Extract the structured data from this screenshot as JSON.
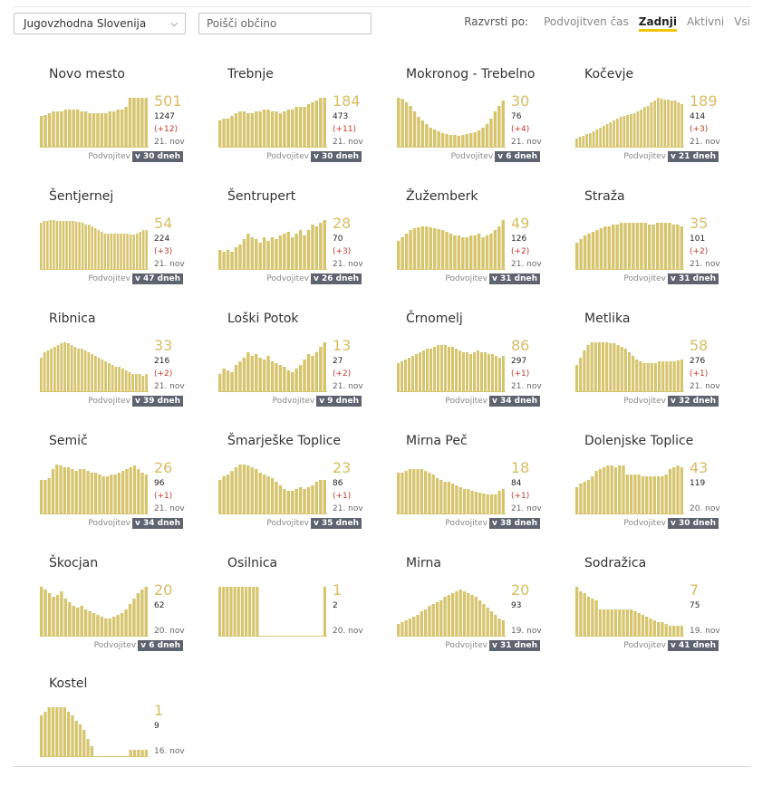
{
  "controls": {
    "region": "Jugovzhodna Slovenija",
    "search_placeholder": "Poišči občino",
    "sort_label": "Razvrsti po:",
    "sort_options": [
      "Podvojitven čas",
      "Zadnji",
      "Aktivni",
      "Vsi"
    ],
    "sort_active": "Zadnji"
  },
  "chart_colors": {
    "bars": "#d6c56e",
    "big_number": "#d8bd63",
    "delta": "#c0392b",
    "tag_bg": "#5e6370",
    "sort_underline": "#f4c400"
  },
  "cards": [
    {
      "name": "Novo mesto",
      "active": "501",
      "total": "1247",
      "delta": "(+12)",
      "date": "21. nov",
      "doubling_label": "Podvojitev",
      "doubling": "v 30 dneh",
      "chart_data": {
        "type": "bar",
        "values": [
          35,
          36,
          38,
          40,
          40,
          40,
          42,
          42,
          42,
          42,
          40,
          40,
          38,
          38,
          38,
          38,
          38,
          40,
          40,
          42,
          42,
          45,
          55,
          55,
          55,
          55,
          55
        ]
      }
    },
    {
      "name": "Trebnje",
      "active": "184",
      "total": "473",
      "delta": "(+11)",
      "date": "21. nov",
      "doubling_label": "Podvojitev",
      "doubling": "v 30 dneh",
      "chart_data": {
        "type": "bar",
        "values": [
          30,
          32,
          32,
          35,
          38,
          40,
          40,
          38,
          38,
          40,
          40,
          42,
          42,
          40,
          40,
          38,
          40,
          42,
          42,
          45,
          45,
          45,
          48,
          50,
          52,
          55,
          55
        ]
      }
    },
    {
      "name": "Mokronog - Trebelno",
      "active": "30",
      "total": "76",
      "delta": "(+4)",
      "date": "21. nov",
      "doubling_label": "Podvojitev",
      "doubling": "v 6 dneh",
      "chart_data": {
        "type": "bar",
        "values": [
          55,
          54,
          50,
          46,
          40,
          34,
          30,
          26,
          22,
          20,
          18,
          16,
          15,
          14,
          14,
          13,
          14,
          15,
          16,
          17,
          19,
          22,
          26,
          32,
          40,
          46,
          52
        ]
      }
    },
    {
      "name": "Kočevje",
      "active": "189",
      "total": "414",
      "delta": "(+3)",
      "date": "21. nov",
      "doubling_label": "Podvojitev",
      "doubling": "v 21 dneh",
      "chart_data": {
        "type": "bar",
        "values": [
          10,
          12,
          13,
          15,
          16,
          18,
          20,
          22,
          24,
          26,
          28,
          30,
          32,
          34,
          35,
          36,
          37,
          38,
          40,
          42,
          45,
          46,
          50,
          52,
          55,
          54,
          53,
          53,
          52,
          52,
          50,
          48
        ]
      }
    },
    {
      "name": "Šentjernej",
      "active": "54",
      "total": "224",
      "delta": "(+3)",
      "date": "21. nov",
      "doubling_label": "Podvojitev",
      "doubling": "v 47 dneh",
      "chart_data": {
        "type": "bar",
        "values": [
          52,
          54,
          54,
          55,
          55,
          54,
          54,
          54,
          54,
          54,
          54,
          53,
          53,
          52,
          50,
          50,
          48,
          46,
          44,
          42,
          40,
          40,
          40,
          40,
          40,
          40,
          40,
          40,
          39,
          39,
          40,
          42,
          44,
          44
        ]
      }
    },
    {
      "name": "Šentrupert",
      "active": "28",
      "total": "70",
      "delta": "(+3)",
      "date": "21. nov",
      "doubling_label": "Podvojitev",
      "doubling": "v 26 dneh",
      "chart_data": {
        "type": "bar",
        "values": [
          22,
          20,
          22,
          20,
          25,
          28,
          34,
          40,
          36,
          34,
          30,
          36,
          32,
          36,
          34,
          38,
          40,
          42,
          36,
          40,
          44,
          38,
          44,
          50,
          48,
          52,
          55
        ]
      }
    },
    {
      "name": "Žužemberk",
      "active": "49",
      "total": "126",
      "delta": "(+2)",
      "date": "21. nov",
      "doubling_label": "Podvojitev",
      "doubling": "v 31 dneh",
      "chart_data": {
        "type": "bar",
        "values": [
          32,
          36,
          40,
          44,
          46,
          47,
          48,
          48,
          47,
          46,
          45,
          44,
          42,
          40,
          38,
          38,
          36,
          36,
          38,
          38,
          40,
          36,
          38,
          40,
          44,
          48,
          55
        ]
      }
    },
    {
      "name": "Straža",
      "active": "35",
      "total": "101",
      "delta": "(+2)",
      "date": "21. nov",
      "doubling_label": "Podvojitev",
      "doubling": "v 31 dneh",
      "chart_data": {
        "type": "bar",
        "values": [
          30,
          34,
          38,
          40,
          42,
          44,
          46,
          48,
          48,
          50,
          50,
          52,
          52,
          52,
          52,
          52,
          52,
          52,
          50,
          50,
          52,
          52,
          52,
          52,
          50,
          50,
          48
        ]
      }
    },
    {
      "name": "Ribnica",
      "active": "33",
      "total": "216",
      "delta": "(+2)",
      "date": "21. nov",
      "doubling_label": "Podvojitev",
      "doubling": "v 39 dneh",
      "chart_data": {
        "type": "bar",
        "values": [
          38,
          44,
          46,
          48,
          50,
          52,
          54,
          56,
          54,
          52,
          50,
          48,
          48,
          46,
          44,
          42,
          40,
          38,
          36,
          34,
          32,
          30,
          28,
          28,
          26,
          24,
          22,
          20,
          20,
          20,
          18,
          20
        ]
      }
    },
    {
      "name": "Loški Potok",
      "active": "13",
      "total": "27",
      "delta": "(+2)",
      "date": "21. nov",
      "doubling_label": "Podvojitev",
      "doubling": "v 9 dneh",
      "chart_data": {
        "type": "bar",
        "values": [
          20,
          26,
          24,
          22,
          30,
          34,
          38,
          44,
          40,
          42,
          38,
          36,
          40,
          34,
          32,
          30,
          28,
          24,
          22,
          26,
          30,
          36,
          42,
          40,
          44,
          50,
          55
        ]
      }
    },
    {
      "name": "Črnomelj",
      "active": "86",
      "total": "297",
      "delta": "(+1)",
      "date": "21. nov",
      "doubling_label": "Podvojitev",
      "doubling": "v 34 dneh",
      "chart_data": {
        "type": "bar",
        "values": [
          32,
          34,
          36,
          38,
          40,
          42,
          44,
          46,
          48,
          48,
          50,
          52,
          52,
          52,
          50,
          50,
          48,
          46,
          44,
          44,
          42,
          44,
          46,
          44,
          44,
          42,
          42,
          40,
          38,
          40
        ]
      }
    },
    {
      "name": "Metlika",
      "active": "58",
      "total": "276",
      "delta": "(+1)",
      "date": "21. nov",
      "doubling_label": "Podvojitev",
      "doubling": "v 32 dneh",
      "chart_data": {
        "type": "bar",
        "values": [
          30,
          38,
          46,
          52,
          55,
          55,
          55,
          55,
          55,
          54,
          54,
          52,
          50,
          48,
          44,
          40,
          36,
          34,
          32,
          32,
          32,
          32,
          34,
          34,
          34,
          34,
          34,
          35,
          36
        ]
      }
    },
    {
      "name": "Semič",
      "active": "26",
      "total": "96",
      "delta": "(+1)",
      "date": "21. nov",
      "doubling_label": "Podvojitev",
      "doubling": "v 34 dneh",
      "chart_data": {
        "type": "bar",
        "values": [
          38,
          38,
          40,
          50,
          55,
          54,
          52,
          52,
          50,
          48,
          50,
          50,
          48,
          46,
          46,
          44,
          42,
          42,
          44,
          44,
          46,
          48,
          50,
          52,
          54,
          50,
          46,
          44
        ]
      }
    },
    {
      "name": "Šmarješke Toplice",
      "active": "23",
      "total": "86",
      "delta": "(+1)",
      "date": "21. nov",
      "doubling_label": "Podvojitev",
      "doubling": "v 35 dneh",
      "chart_data": {
        "type": "bar",
        "values": [
          38,
          42,
          44,
          48,
          52,
          55,
          56,
          54,
          52,
          50,
          46,
          44,
          42,
          40,
          36,
          32,
          28,
          26,
          26,
          28,
          30,
          28,
          30,
          32,
          36,
          38,
          38
        ]
      }
    },
    {
      "name": "Mirna Peč",
      "active": "18",
      "total": "84",
      "delta": "(+1)",
      "date": "21. nov",
      "doubling_label": "Podvojitev",
      "doubling": "v 38 dneh",
      "chart_data": {
        "type": "bar",
        "values": [
          46,
          46,
          48,
          50,
          50,
          50,
          50,
          48,
          46,
          44,
          40,
          38,
          36,
          36,
          34,
          32,
          30,
          28,
          28,
          26,
          25,
          24,
          23,
          22,
          22,
          22,
          26,
          28
        ]
      }
    },
    {
      "name": "Dolenjske Toplice",
      "active": "43",
      "total": "119",
      "delta": "",
      "date": "20. nov",
      "doubling_label": "Podvojitev",
      "doubling": "v 30 dneh",
      "chart_data": {
        "type": "bar",
        "values": [
          30,
          34,
          36,
          38,
          42,
          48,
          50,
          52,
          54,
          54,
          52,
          54,
          54,
          44,
          44,
          44,
          44,
          42,
          42,
          42,
          42,
          42,
          42,
          44,
          50,
          52,
          54,
          52
        ]
      }
    },
    {
      "name": "Škocjan",
      "active": "20",
      "total": "62",
      "delta": "",
      "date": "20. nov",
      "doubling_label": "Podvojitev",
      "doubling": "v 6 dneh",
      "chart_data": {
        "type": "bar",
        "values": [
          55,
          52,
          48,
          44,
          46,
          50,
          42,
          38,
          34,
          32,
          34,
          30,
          28,
          26,
          24,
          22,
          20,
          20,
          22,
          24,
          26,
          30,
          36,
          42,
          48,
          52,
          55
        ]
      }
    },
    {
      "name": "Osilnica",
      "active": "1",
      "total": "2",
      "delta": "",
      "date": "20. nov",
      "doubling_label": "",
      "doubling": "",
      "chart_data": {
        "type": "bar",
        "values": [
          55,
          55,
          55,
          55,
          55,
          55,
          55,
          55,
          55,
          55,
          55,
          0,
          0,
          0,
          0,
          0,
          0,
          0,
          0,
          0,
          0,
          0,
          0,
          0,
          0,
          0,
          0,
          0,
          55
        ]
      }
    },
    {
      "name": "Mirna",
      "active": "20",
      "total": "93",
      "delta": "",
      "date": "19. nov",
      "doubling_label": "Podvojitev",
      "doubling": "v 31 dneh",
      "chart_data": {
        "type": "bar",
        "values": [
          14,
          16,
          18,
          20,
          22,
          24,
          28,
          30,
          34,
          36,
          38,
          40,
          44,
          46,
          48,
          50,
          52,
          50,
          48,
          46,
          44,
          40,
          36,
          32,
          28,
          24,
          20,
          18
        ]
      }
    },
    {
      "name": "Sodražica",
      "active": "7",
      "total": "75",
      "delta": "",
      "date": "19. nov",
      "doubling_label": "Podvojitev",
      "doubling": "v 41 dneh",
      "chart_data": {
        "type": "bar",
        "values": [
          55,
          50,
          48,
          44,
          42,
          40,
          30,
          30,
          30,
          30,
          30,
          30,
          30,
          30,
          30,
          28,
          26,
          24,
          22,
          20,
          18,
          16,
          16,
          14,
          12,
          12,
          12,
          12
        ]
      }
    },
    {
      "name": "Kostel",
      "active": "1",
      "total": "9",
      "delta": "",
      "date": "16. nov",
      "doubling_label": "",
      "doubling": "",
      "chart_data": {
        "type": "bar",
        "values": [
          46,
          50,
          55,
          55,
          55,
          55,
          55,
          50,
          46,
          40,
          36,
          30,
          20,
          12,
          0,
          0,
          0,
          0,
          0,
          0,
          0,
          0,
          0,
          8,
          8,
          8,
          8,
          8
        ]
      }
    }
  ]
}
